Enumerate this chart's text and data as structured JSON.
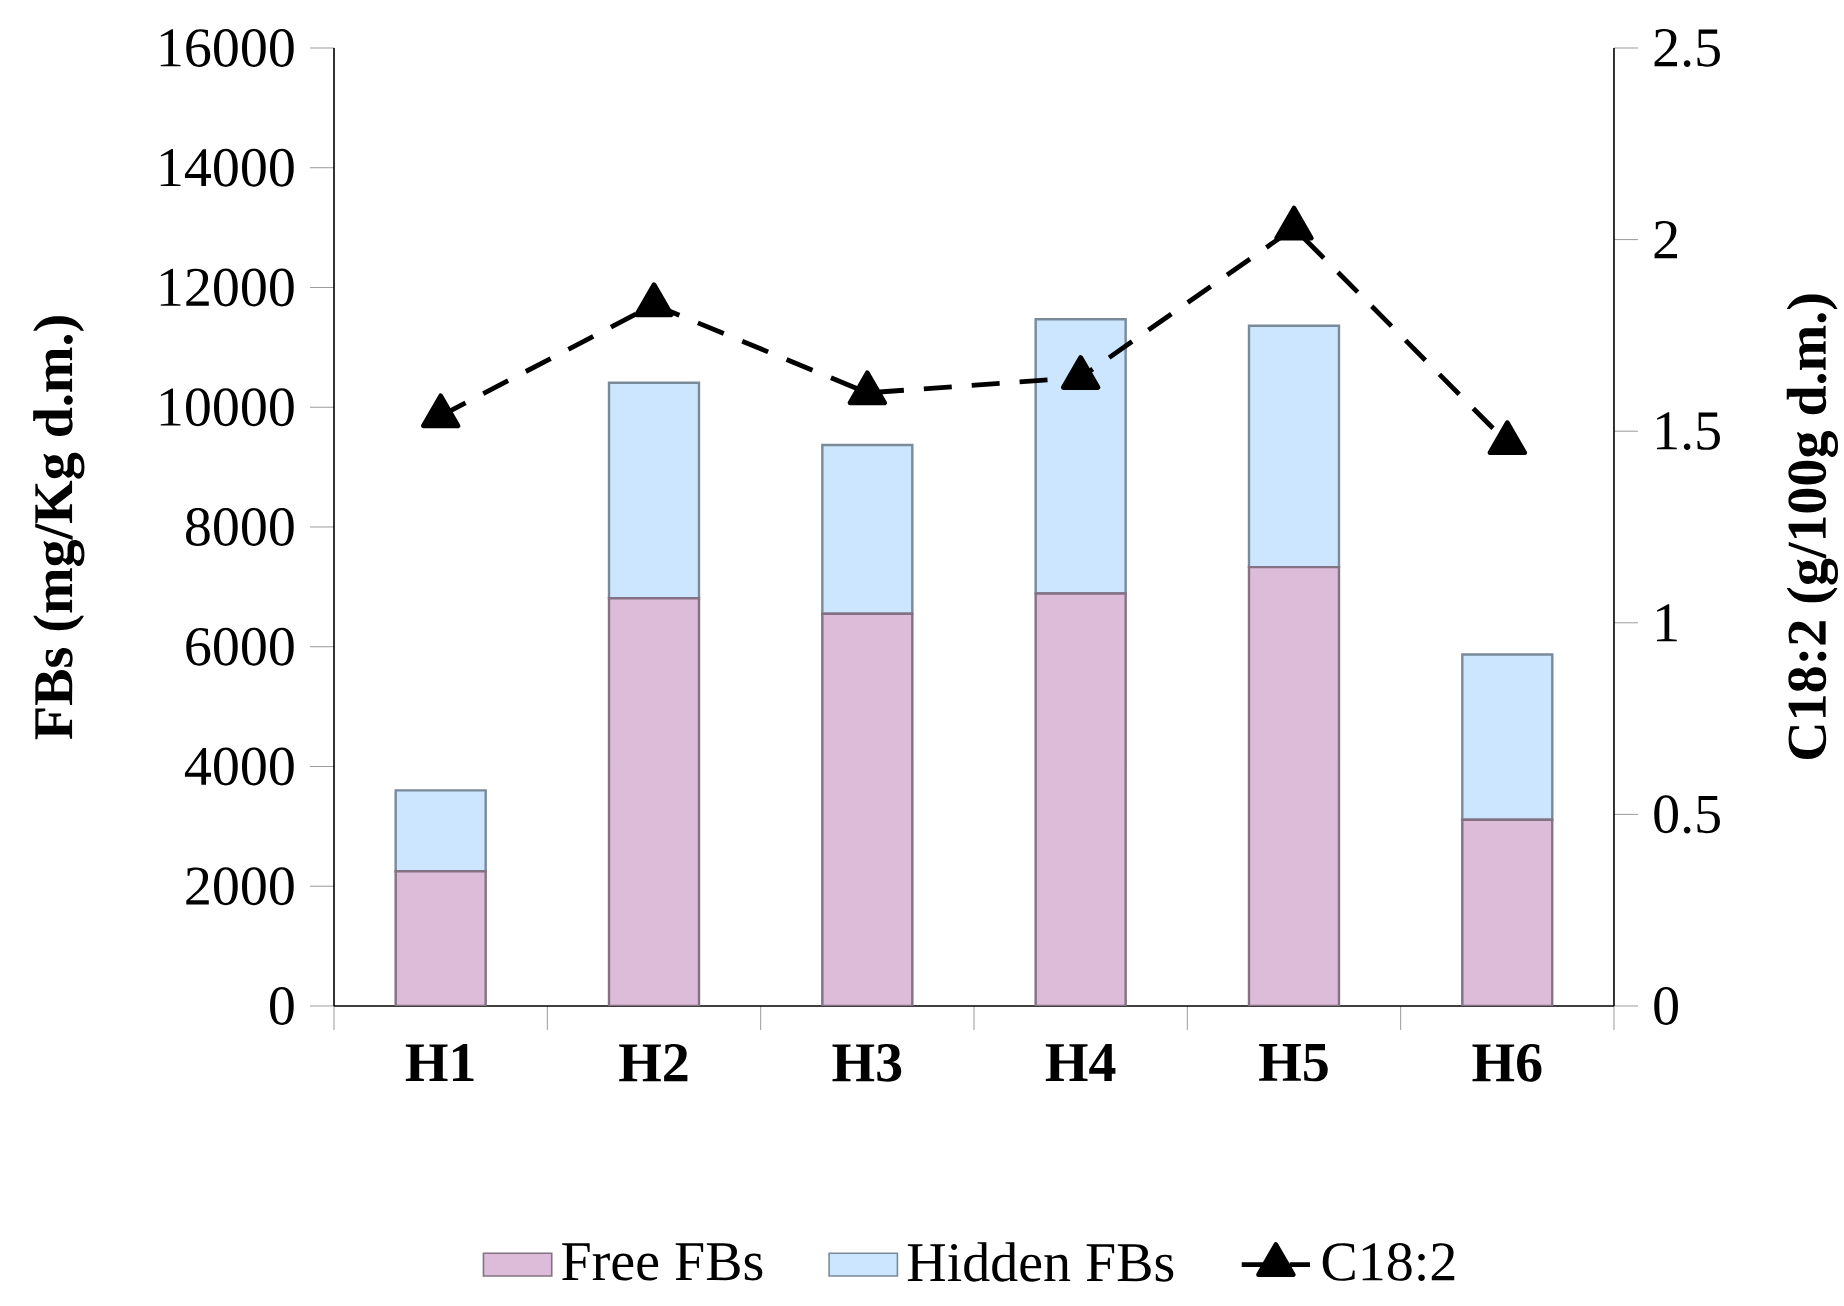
{
  "chart_data": {
    "type": "bar",
    "stacked": true,
    "categories": [
      "H1",
      "H2",
      "H3",
      "H4",
      "H5",
      "H6"
    ],
    "ylabel": "FBs (mg/Kg d.m.)",
    "y2label": "C18:2 (g/100g d.m.)",
    "ylim": [
      0,
      16000
    ],
    "yticks": [
      0,
      2000,
      4000,
      6000,
      8000,
      10000,
      12000,
      14000,
      16000
    ],
    "y2lim": [
      0,
      2.5
    ],
    "y2ticks": [
      0,
      0.5,
      1,
      1.5,
      2,
      2.5
    ],
    "legend": "bottom",
    "series": [
      {
        "name": "Free FBs",
        "color": "#dcbcd9",
        "values": [
          2250,
          6810,
          6550,
          6890,
          7330,
          3110
        ]
      },
      {
        "name": "Hidden FBs",
        "color": "#cce6ff",
        "values": [
          1350,
          3600,
          2820,
          4580,
          4030,
          2760
        ]
      },
      {
        "name": "C18:2",
        "type": "line",
        "axis": "y2",
        "color": "#000000",
        "marker": "triangle",
        "line_style": "dashed",
        "values": [
          1.54,
          1.83,
          1.6,
          1.64,
          2.03,
          1.47
        ]
      }
    ]
  }
}
